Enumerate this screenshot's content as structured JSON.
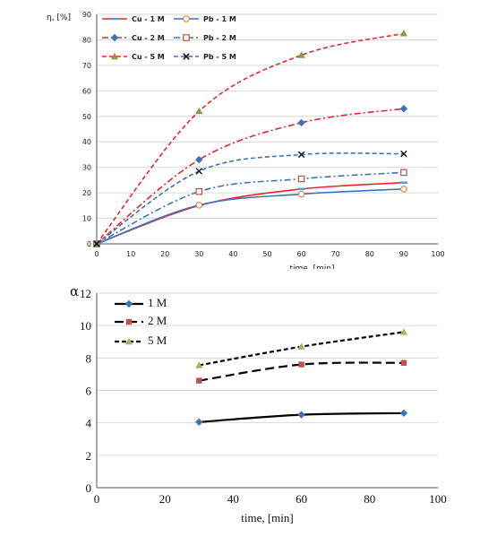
{
  "chart_data": [
    {
      "type": "line",
      "title": "",
      "xlabel": "time, [min]",
      "ylabel": "η, [%]",
      "xlim": [
        0,
        100
      ],
      "ylim": [
        0,
        90
      ],
      "xticks": [
        0,
        10,
        20,
        30,
        40,
        50,
        60,
        70,
        80,
        90,
        100
      ],
      "yticks": [
        0,
        10,
        20,
        30,
        40,
        50,
        60,
        70,
        80,
        90
      ],
      "grid": true,
      "legend": "top-left",
      "x": [
        0,
        30,
        60,
        90
      ],
      "series": [
        {
          "name": "Cu - 1 M",
          "values": [
            0,
            15,
            21.5,
            24
          ],
          "color": "#e8262b",
          "dash": "solid",
          "marker": "dash",
          "marker_color": "#4f9fd6"
        },
        {
          "name": "Pb - 1 M",
          "values": [
            0,
            15.2,
            19.5,
            21.5
          ],
          "color": "#3d74b8",
          "dash": "solid",
          "marker": "circle-open",
          "marker_color": "#e08a3c"
        },
        {
          "name": "Cu - 2 M",
          "values": [
            0,
            33,
            47.5,
            53
          ],
          "color": "#e8262b",
          "dash": "dashdot",
          "marker": "diamond",
          "marker_color": "#3d74b8"
        },
        {
          "name": "Pb - 2 M",
          "values": [
            0,
            20.5,
            25.5,
            28
          ],
          "color": "#3d74b8",
          "dash": "dashdot",
          "marker": "square-open",
          "marker_color": "#c0504d"
        },
        {
          "name": "Cu - 5 M",
          "values": [
            0,
            52,
            74,
            82.5
          ],
          "color": "#e8262b",
          "dash": "dash",
          "marker": "triangle",
          "marker_color": "#8c9a46"
        },
        {
          "name": "Pb - 5 M",
          "values": [
            0,
            28.5,
            35,
            35.3
          ],
          "color": "#3d74b8",
          "dash": "dash",
          "marker": "x",
          "marker_color": "#111111"
        }
      ]
    },
    {
      "type": "line",
      "title": "",
      "xlabel": "time, [min]",
      "ylabel": "α",
      "xlim": [
        0,
        100
      ],
      "ylim": [
        0,
        12
      ],
      "xticks": [
        0,
        20,
        40,
        60,
        80,
        100
      ],
      "yticks": [
        0,
        2,
        4,
        6,
        8,
        10,
        12
      ],
      "grid": true,
      "legend": "top-left",
      "x": [
        30,
        60,
        90
      ],
      "series": [
        {
          "name": "1 M",
          "values": [
            4.05,
            4.5,
            4.6
          ],
          "color": "#000000",
          "dash": "solid",
          "marker": "diamond",
          "marker_color": "#3d74b8"
        },
        {
          "name": "2 M",
          "values": [
            6.6,
            7.6,
            7.7
          ],
          "color": "#000000",
          "dash": "longdash",
          "marker": "square",
          "marker_color": "#c0504d"
        },
        {
          "name": "5 M",
          "values": [
            7.55,
            8.7,
            9.6
          ],
          "color": "#000000",
          "dash": "dash",
          "marker": "triangle",
          "marker_color": "#9bbb59"
        }
      ]
    }
  ]
}
